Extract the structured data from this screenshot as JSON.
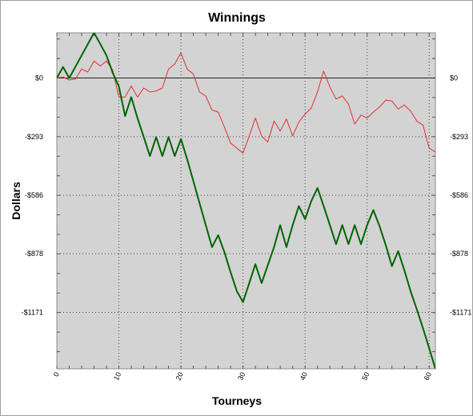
{
  "chart_data": {
    "type": "line",
    "title": "Winnings",
    "xlabel": "Tourneys",
    "ylabel": "Dollars",
    "xlim": [
      0,
      61
    ],
    "ylim": [
      -1453,
      226
    ],
    "x_ticks": [
      0,
      10,
      20,
      30,
      40,
      50,
      60
    ],
    "y_ticks": [
      0,
      -293,
      -586,
      -878,
      -1171
    ],
    "y_tick_labels": [
      "$0",
      "-$293",
      "-$586",
      "-$878",
      "-$1171"
    ],
    "grid": true,
    "legend": "none",
    "series": [
      {
        "color": "#006400",
        "x": [
          0,
          1,
          2,
          3,
          4,
          5,
          6,
          7,
          8,
          9,
          10,
          11,
          12,
          13,
          14,
          15,
          16,
          17,
          18,
          19,
          20,
          21,
          22,
          23,
          24,
          25,
          26,
          27,
          28,
          29,
          30,
          31,
          32,
          33,
          34,
          35,
          36,
          37,
          38,
          39,
          40,
          41,
          42,
          43,
          44,
          45,
          46,
          47,
          48,
          49,
          50,
          51,
          52,
          53,
          54,
          55,
          56,
          57,
          58,
          59,
          60,
          61
        ],
        "values": [
          0,
          55,
          0,
          57,
          113,
          170,
          226,
          170,
          113,
          27,
          -42,
          -190,
          -95,
          -200,
          -295,
          -390,
          -295,
          -390,
          -295,
          -390,
          -305,
          -405,
          -515,
          -625,
          -735,
          -845,
          -785,
          -870,
          -970,
          -1065,
          -1120,
          -1025,
          -930,
          -1025,
          -935,
          -845,
          -735,
          -845,
          -735,
          -640,
          -705,
          -615,
          -550,
          -640,
          -735,
          -830,
          -735,
          -830,
          -735,
          -830,
          -735,
          -660,
          -740,
          -835,
          -940,
          -865,
          -960,
          -1065,
          -1155,
          -1250,
          -1350,
          -1453
        ]
      },
      {
        "color": "#e03030",
        "x": [
          0,
          1,
          2,
          3,
          4,
          5,
          6,
          7,
          8,
          9,
          10,
          11,
          12,
          13,
          14,
          15,
          16,
          17,
          18,
          19,
          20,
          21,
          22,
          23,
          24,
          25,
          26,
          27,
          28,
          29,
          30,
          31,
          32,
          33,
          34,
          35,
          36,
          37,
          38,
          39,
          40,
          41,
          42,
          43,
          44,
          45,
          46,
          47,
          48,
          49,
          50,
          51,
          52,
          53,
          54,
          55,
          56,
          57,
          58,
          59,
          60,
          61
        ],
        "values": [
          0,
          5,
          -10,
          -5,
          45,
          30,
          85,
          60,
          85,
          40,
          -95,
          -95,
          -40,
          -95,
          -50,
          -70,
          -65,
          -50,
          45,
          70,
          126,
          45,
          20,
          -70,
          -90,
          -160,
          -170,
          -245,
          -325,
          -350,
          -375,
          -290,
          -200,
          -290,
          -320,
          -215,
          -265,
          -205,
          -290,
          -220,
          -180,
          -150,
          -70,
          35,
          -45,
          -105,
          -90,
          -130,
          -230,
          -185,
          -200,
          -170,
          -145,
          -110,
          -115,
          -155,
          -135,
          -165,
          -215,
          -235,
          -350,
          -370
        ]
      }
    ]
  }
}
